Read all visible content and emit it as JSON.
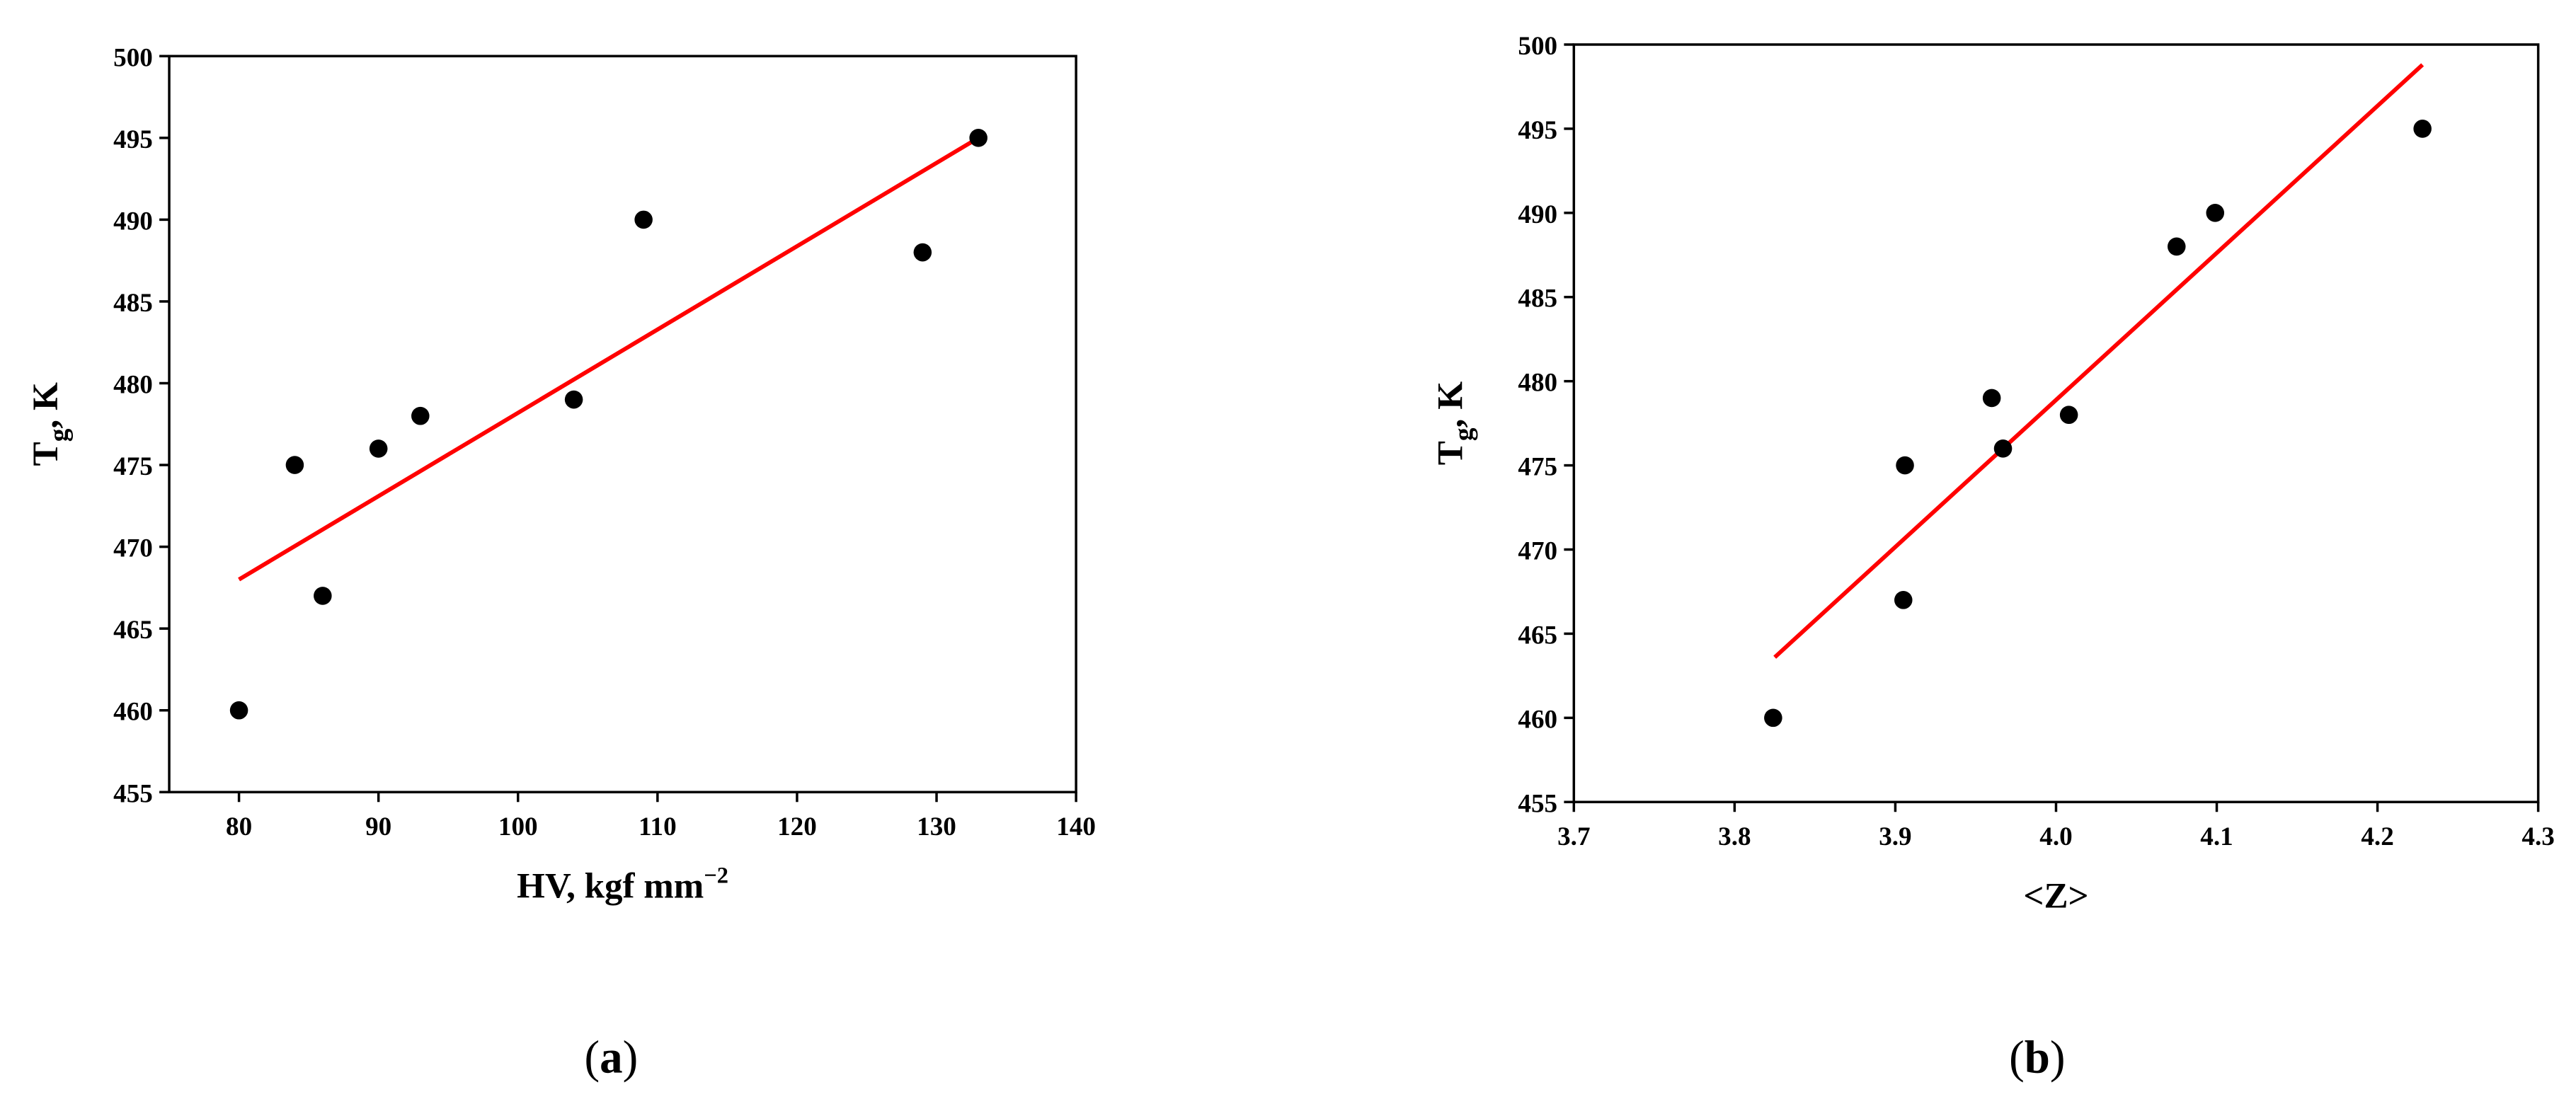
{
  "chart_data": [
    {
      "type": "scatter",
      "caption": [
        "(",
        "a",
        ")"
      ],
      "xlabel": [
        "HV, kgf mm",
        "−2"
      ],
      "ylabel": [
        "T",
        "g",
        ", K"
      ],
      "xlim": [
        75,
        140
      ],
      "xticks": [
        80,
        90,
        100,
        110,
        120,
        130,
        140
      ],
      "ylim": [
        455,
        500
      ],
      "yticks": [
        455,
        460,
        465,
        470,
        475,
        480,
        485,
        490,
        495,
        500
      ],
      "series": [
        {
          "color": "#000000",
          "x": [
            80,
            84,
            86,
            90,
            93,
            104,
            109,
            129,
            133
          ],
          "values": [
            460,
            475,
            467,
            476,
            478,
            479,
            490,
            488,
            495
          ]
        }
      ],
      "fit": {
        "color": "#ff0000",
        "x": [
          80,
          133
        ],
        "values": [
          468,
          495
        ]
      }
    },
    {
      "type": "scatter",
      "caption": [
        "(",
        "b",
        ")"
      ],
      "xlabel": [
        "<Z>"
      ],
      "ylabel": [
        "T",
        "g",
        ", K"
      ],
      "xlim": [
        3.7,
        4.3
      ],
      "xticks": [
        3.7,
        3.8,
        3.9,
        {
          "value": 4,
          "label": "4.0"
        },
        4.1,
        4.2,
        4.3
      ],
      "ylim": [
        455,
        500
      ],
      "yticks": [
        455,
        460,
        465,
        470,
        475,
        480,
        485,
        490,
        495,
        500
      ],
      "series": [
        {
          "color": "#000000",
          "x": [
            3.824,
            3.905,
            3.906,
            3.96,
            3.967,
            4.008,
            4.075,
            4.099,
            4.228
          ],
          "values": [
            460,
            467,
            475,
            479,
            476,
            478,
            488,
            490,
            495
          ]
        }
      ],
      "fit": {
        "color": "#ff0000",
        "x": [
          3.825,
          4.228
        ],
        "values": [
          463.6,
          498.8
        ]
      }
    }
  ]
}
